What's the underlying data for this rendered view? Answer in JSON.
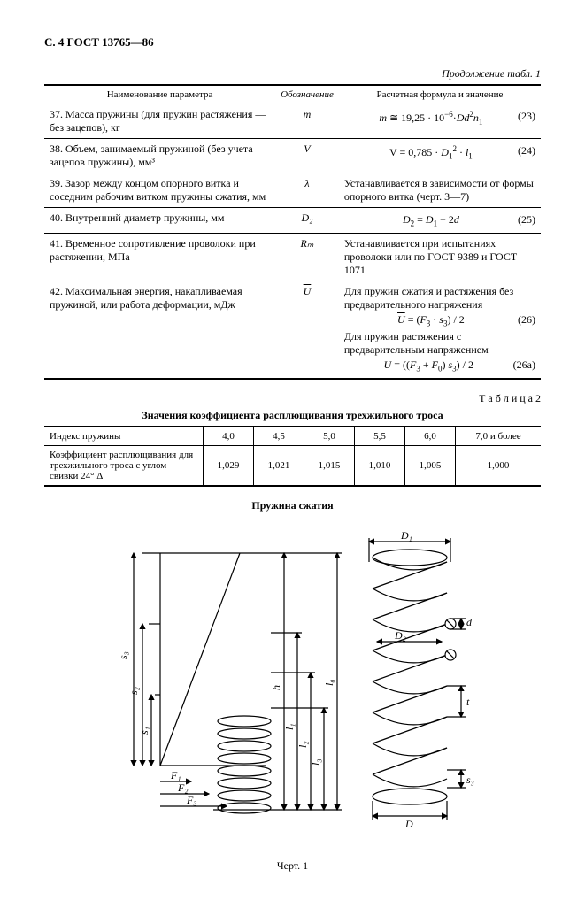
{
  "header": "С. 4 ГОСТ 13765—86",
  "continuation": "Продолжение табл. 1",
  "table1": {
    "headers": [
      "Наименование параметра",
      "Обозначение",
      "Расчетная формула и значение"
    ],
    "rows": [
      {
        "num": "37.",
        "name": "Масса пружины (для пружин растяжения — без зацепов), кг",
        "symbol": "m",
        "formula_html": "<i>m</i> ≅ 19,25 · 10<sup>−6</sup>·<i>Dd</i><sup>2</sup><i>n</i><sub>1</sub>",
        "eq": "(23)"
      },
      {
        "num": "38.",
        "name": "Объем, занимаемый пружиной (без учета зацепов пружины), мм³",
        "symbol": "V",
        "formula_html": "V = 0,785 · <i>D</i><sub>1</sub><sup>2</sup> · <i>l</i><sub>1</sub>",
        "eq": "(24)"
      },
      {
        "num": "39.",
        "name": "Зазор между концом опорного витка и соседним рабочим витком пружины сжатия, мм",
        "symbol": "λ",
        "text": "Устанавливается в зависимости от формы опорного витка (черт. 3—7)"
      },
      {
        "num": "40.",
        "name": "Внутренний диаметр пружины, мм",
        "symbol": "D₂",
        "formula_html": "<i>D</i><sub>2</sub> = <i>D</i><sub>1</sub> − 2<i>d</i>",
        "eq": "(25)"
      },
      {
        "num": "41.",
        "name": "Временное сопротивление проволоки при растяжении, МПа",
        "symbol": "Rₘ",
        "text": "Устанавливается при испытаниях проволоки или по ГОСТ 9389 и ГОСТ 1071"
      },
      {
        "num": "42.",
        "name": "Максимальная энергия, накапливаемая пружиной, или работа деформации, мДж",
        "symbol_html": "<span class='over'>U</span>",
        "blocks": [
          {
            "text": "Для пружин сжатия и растяжения без предварительного напряжения"
          },
          {
            "formula_html": "<span class='over'>U</span> = (<i>F</i><sub>3</sub> · <i>s</i><sub>3</sub>) / 2",
            "eq": "(26)"
          },
          {
            "text": "Для пружин растяжения с предварительным напряжением"
          },
          {
            "formula_html": "<span class='over'>U</span> = ((<i>F</i><sub>3</sub> + <i>F</i><sub>0</sub>) <i>s</i><sub>3</sub>) / 2",
            "eq": "(26a)"
          }
        ]
      }
    ]
  },
  "table2": {
    "label": "Т а б л и ц а  2",
    "title": "Значения коэффициента расплющивания трехжильного троса",
    "header_row": [
      "Индекс пружины",
      "4,0",
      "4,5",
      "5,0",
      "5,5",
      "6,0",
      "7,0 и более"
    ],
    "data_row_label": "Коэффициент расплющивания для трехжильного троса с углом свивки 24° Δ",
    "data_row": [
      "1,029",
      "1,021",
      "1,015",
      "1,010",
      "1,005",
      "1,000"
    ]
  },
  "figure": {
    "title": "Пружина сжатия",
    "caption": "Черт. 1",
    "labels": {
      "D1": "D₁",
      "D2": "D₂",
      "D": "D",
      "d": "d",
      "t": "t",
      "s1": "s₁",
      "s2": "s₂",
      "s3": "s₃",
      "s3r": "s₃",
      "F1": "F₁",
      "F2": "F₂",
      "F3": "F₃",
      "l0": "l₀",
      "l1": "l₁",
      "l2": "l₂",
      "l3": "l₃",
      "h": "h"
    },
    "colors": {
      "stroke": "#000000",
      "fill": "#ffffff"
    }
  }
}
